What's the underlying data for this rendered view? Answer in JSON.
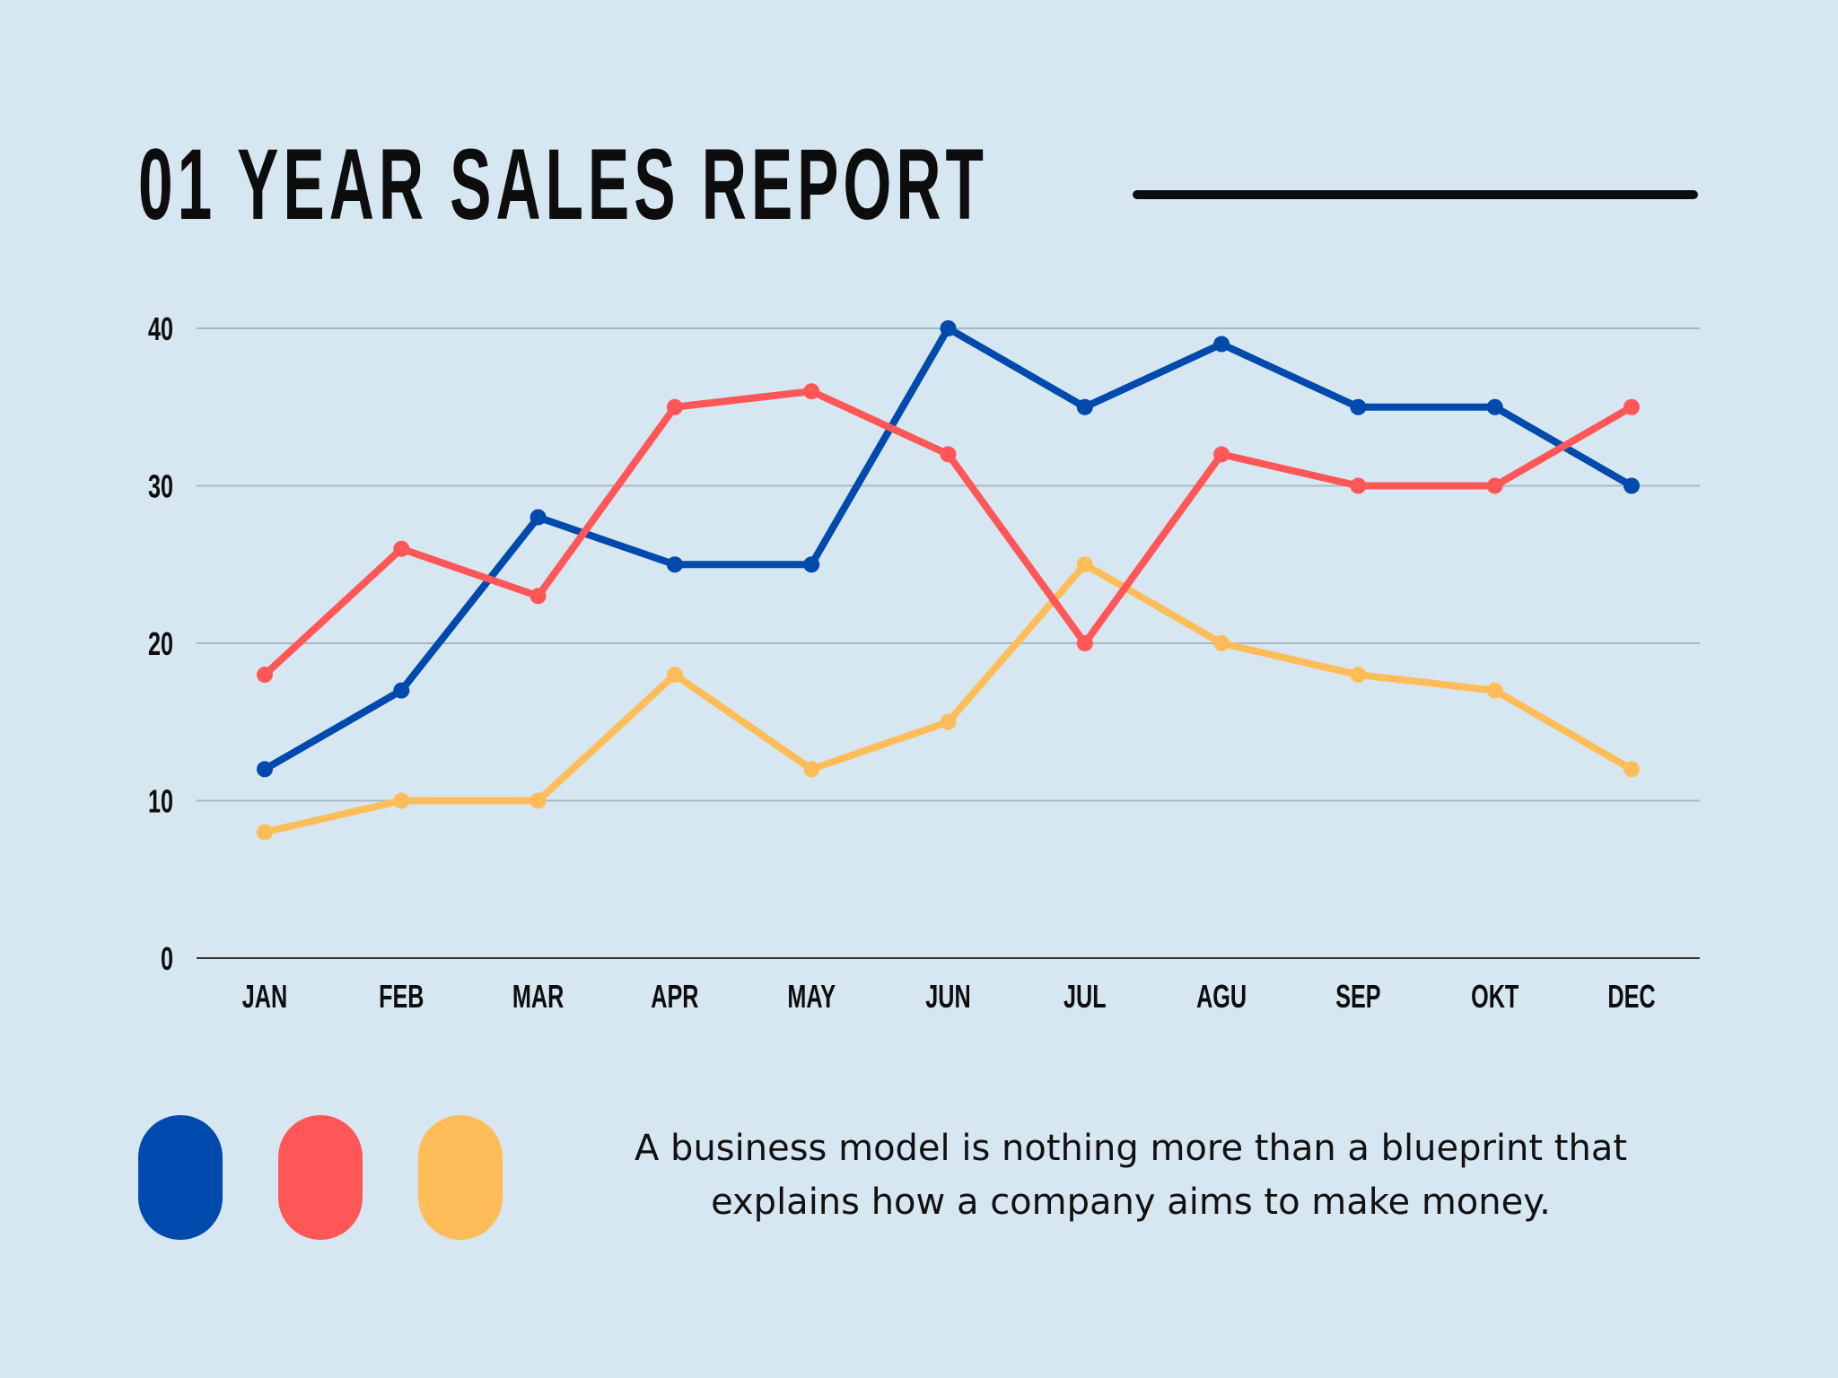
{
  "title": "01 YEAR SALES REPORT",
  "caption": "A business model is nothing more than a blueprint that explains how a company aims to make money.",
  "colors": {
    "background": "#d6e7f1",
    "blue": "#004aad",
    "red": "#ff5757",
    "yellow": "#ffbd59",
    "grid": "#a9b8c4"
  },
  "chart_data": {
    "type": "line",
    "title": "01 YEAR SALES REPORT",
    "categories": [
      "JAN",
      "FEB",
      "MAR",
      "APR",
      "MAY",
      "JUN",
      "JUL",
      "AGU",
      "SEP",
      "OKT",
      "DEC"
    ],
    "yticks": [
      "0",
      "10",
      "20",
      "30",
      "40"
    ],
    "ylim": [
      0,
      40
    ],
    "grid": true,
    "legend": "bottom-left (color swatches only, unlabeled)",
    "series": [
      {
        "color": "#004aad",
        "values": [
          12,
          17,
          28,
          25,
          25,
          40,
          35,
          39,
          35,
          35,
          30
        ]
      },
      {
        "color": "#ff5757",
        "values": [
          18,
          26,
          23,
          35,
          36,
          32,
          20,
          32,
          30,
          30,
          35
        ]
      },
      {
        "color": "#ffbd59",
        "values": [
          8,
          10,
          10,
          18,
          12,
          15,
          25,
          20,
          18,
          17,
          12
        ]
      }
    ]
  }
}
